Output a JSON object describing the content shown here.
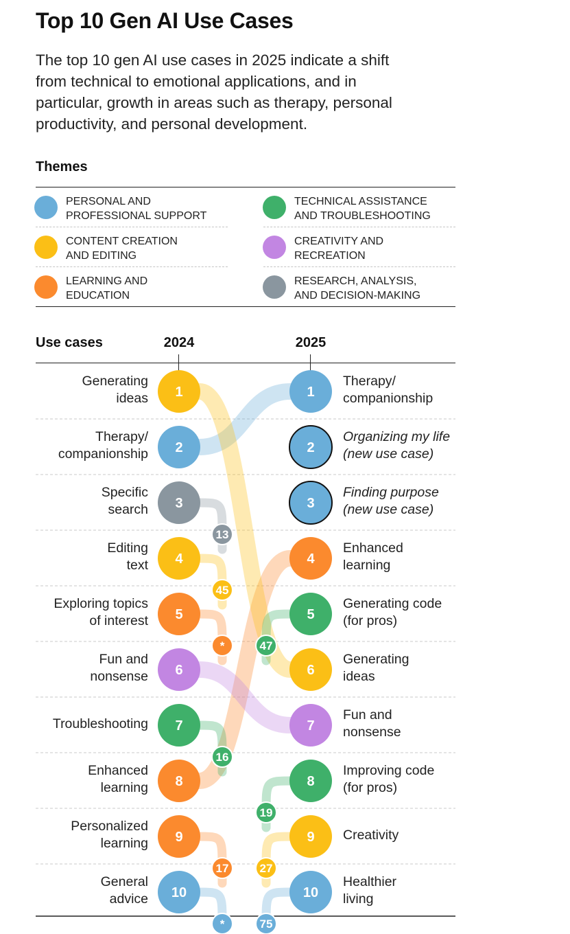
{
  "title": "Top 10 Gen AI Use Cases",
  "subtitle_lines": [
    "The top 10 gen AI use cases in 2025 indicate a shift",
    "from technical to emotional applications, and in",
    "particular, growth in areas such as therapy, personal",
    "productivity, and personal development."
  ],
  "themes_label": "Themes",
  "themes": [
    {
      "key": "personal",
      "color": "#6aaed9",
      "lines": [
        "PERSONAL AND",
        "PROFESSIONAL SUPPORT"
      ]
    },
    {
      "key": "technical",
      "color": "#3fb06a",
      "lines": [
        "TECHNICAL ASSISTANCE",
        "AND TROUBLESHOOTING"
      ]
    },
    {
      "key": "content",
      "color": "#fbbf16",
      "lines": [
        "CONTENT CREATION",
        "AND EDITING"
      ]
    },
    {
      "key": "creativity",
      "color": "#c286e2",
      "lines": [
        "CREATIVITY AND",
        "RECREATION"
      ]
    },
    {
      "key": "learning",
      "color": "#fb8a2e",
      "lines": [
        "LEARNING AND",
        "EDUCATION"
      ]
    },
    {
      "key": "research",
      "color": "#8a969f",
      "lines": [
        "RESEARCH, ANALYSIS,",
        "AND DECISION-MAKING"
      ]
    }
  ],
  "chart_data": {
    "type": "slope",
    "use_cases_label": "Use cases",
    "year_2024": "2024",
    "year_2025": "2025",
    "left": [
      {
        "rank": "1",
        "lines": [
          "Generating",
          "ideas"
        ],
        "theme": "content"
      },
      {
        "rank": "2",
        "lines": [
          "Therapy/",
          "companionship"
        ],
        "theme": "personal"
      },
      {
        "rank": "3",
        "lines": [
          "Specific",
          "search"
        ],
        "theme": "research"
      },
      {
        "rank": "4",
        "lines": [
          "Editing",
          "text"
        ],
        "theme": "content"
      },
      {
        "rank": "5",
        "lines": [
          "Exploring topics",
          "of interest"
        ],
        "theme": "learning"
      },
      {
        "rank": "6",
        "lines": [
          "Fun and",
          "nonsense"
        ],
        "theme": "creativity"
      },
      {
        "rank": "7",
        "lines": [
          "Troubleshooting"
        ],
        "theme": "technical"
      },
      {
        "rank": "8",
        "lines": [
          "Enhanced",
          "learning"
        ],
        "theme": "learning"
      },
      {
        "rank": "9",
        "lines": [
          "Personalized",
          "learning"
        ],
        "theme": "learning"
      },
      {
        "rank": "10",
        "lines": [
          "General",
          "advice"
        ],
        "theme": "personal"
      }
    ],
    "right": [
      {
        "rank": "1",
        "lines": [
          "Therapy/",
          "companionship"
        ],
        "theme": "personal",
        "is_new": false
      },
      {
        "rank": "2",
        "lines": [
          "Organizing my life",
          "(new use case)"
        ],
        "theme": "personal",
        "is_new": true
      },
      {
        "rank": "3",
        "lines": [
          "Finding purpose",
          "(new use case)"
        ],
        "theme": "personal",
        "is_new": true
      },
      {
        "rank": "4",
        "lines": [
          "Enhanced",
          "learning"
        ],
        "theme": "learning",
        "is_new": false
      },
      {
        "rank": "5",
        "lines": [
          "Generating code",
          "(for pros)"
        ],
        "theme": "technical",
        "is_new": false
      },
      {
        "rank": "6",
        "lines": [
          "Generating",
          "ideas"
        ],
        "theme": "content",
        "is_new": false
      },
      {
        "rank": "7",
        "lines": [
          "Fun and",
          "nonsense"
        ],
        "theme": "creativity",
        "is_new": false
      },
      {
        "rank": "8",
        "lines": [
          "Improving code",
          "(for pros)"
        ],
        "theme": "technical",
        "is_new": false
      },
      {
        "rank": "9",
        "lines": [
          "Creativity"
        ],
        "theme": "content",
        "is_new": false
      },
      {
        "rank": "10",
        "lines": [
          "Healthier",
          "living"
        ],
        "theme": "personal",
        "is_new": false
      }
    ],
    "connections": [
      {
        "from": 2,
        "to": 1,
        "theme": "personal"
      },
      {
        "from": 8,
        "to": 4,
        "theme": "learning"
      },
      {
        "from": 1,
        "to": 6,
        "theme": "content"
      },
      {
        "from": 6,
        "to": 7,
        "theme": "creativity"
      }
    ],
    "left_exits": [
      {
        "from": 3,
        "new_rank": "13",
        "theme": "research"
      },
      {
        "from": 4,
        "new_rank": "45",
        "theme": "content"
      },
      {
        "from": 5,
        "new_rank": "*",
        "theme": "learning"
      },
      {
        "from": 7,
        "new_rank": "16",
        "theme": "technical"
      },
      {
        "from": 9,
        "new_rank": "17",
        "theme": "learning"
      },
      {
        "from": 10,
        "new_rank": "*",
        "theme": "personal"
      }
    ],
    "right_entries": [
      {
        "to": 5,
        "prev_rank": "47",
        "theme": "technical"
      },
      {
        "to": 8,
        "prev_rank": "19",
        "theme": "technical"
      },
      {
        "to": 9,
        "prev_rank": "27",
        "theme": "content"
      },
      {
        "to": 10,
        "prev_rank": "75",
        "theme": "personal"
      }
    ]
  }
}
